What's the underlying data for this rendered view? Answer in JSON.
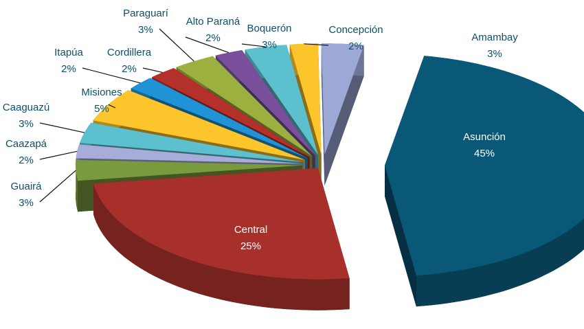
{
  "chart_data": {
    "type": "pie3d",
    "categories": [
      "Asunción",
      "Central",
      "Guairá",
      "Caazapá",
      "Caaguazú",
      "Misiones",
      "Itapúa",
      "Cordillera",
      "Paraguarí",
      "Alto Paraná",
      "Boquerón",
      "Concepción",
      "Amambay"
    ],
    "values": [
      45,
      25,
      3,
      2,
      3,
      5,
      2,
      2,
      3,
      2,
      3,
      2,
      3
    ],
    "value_labels": [
      "45%",
      "25%",
      "3%",
      "2%",
      "3%",
      "5%",
      "2%",
      "2%",
      "3%",
      "2%",
      "3%",
      "2%",
      "3%"
    ],
    "colors": [
      "#0a5878",
      "#a8302b",
      "#7a9a3e",
      "#a7acd8",
      "#5cc0cf",
      "#fdc52c",
      "#1f93d6",
      "#b3302b",
      "#9bb03e",
      "#7a4f9b",
      "#5cc0cf",
      "#fdc52c",
      "#9ca8d6"
    ]
  }
}
